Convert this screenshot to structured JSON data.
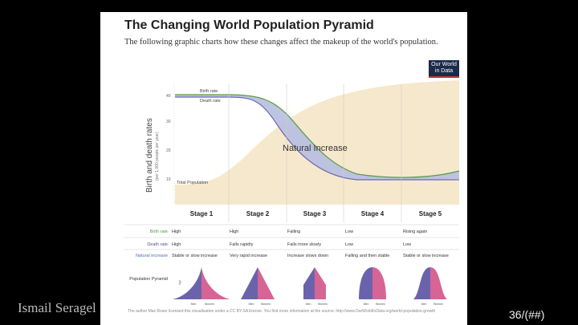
{
  "title": "The Changing World Population Pyramid",
  "subtitle": "The following graphic charts how these changes affect the makeup of the world's population.",
  "logo": "Our World in Data",
  "chart": {
    "ylabel": "Birth and death rates",
    "ylabel_sub": "(per 1,000 people per year)",
    "yticks": [
      "40",
      "30",
      "20",
      "10"
    ],
    "labels": {
      "birth": "Birth rate",
      "death": "Death rate",
      "total": "Total Population",
      "natural": "Natural Increase"
    },
    "stages": [
      "Stage 1",
      "Stage 2",
      "Stage 3",
      "Stage 4",
      "Stage 5"
    ]
  },
  "table": {
    "rows": [
      {
        "label": "Birth rate",
        "color": "#5a9a4a",
        "cells": [
          "High",
          "High",
          "Falling",
          "Low",
          "Rising again"
        ]
      },
      {
        "label": "Death rate",
        "color": "#5b4b9e",
        "cells": [
          "High",
          "Falls rapidly",
          "Falls more slowly",
          "Low",
          "Low"
        ]
      },
      {
        "label": "Natural increase",
        "color": "#4a6fb0",
        "cells": [
          "Stable or slow increase",
          "Very rapid increase",
          "Increase slows down",
          "Falling and then stable",
          "Stable or slow increase"
        ]
      }
    ],
    "pyramid_label": "Population Pyramid",
    "men": "Men",
    "women": "Women",
    "age": "Age"
  },
  "credit": "The author Max Roser licensed this visualisation under a CC BY-SA license. You find more information at the source: http://www.OurWorldInData.org/world-population-growth",
  "footer": {
    "author": "Ismail Seragel",
    "page": "36/(##)"
  }
}
